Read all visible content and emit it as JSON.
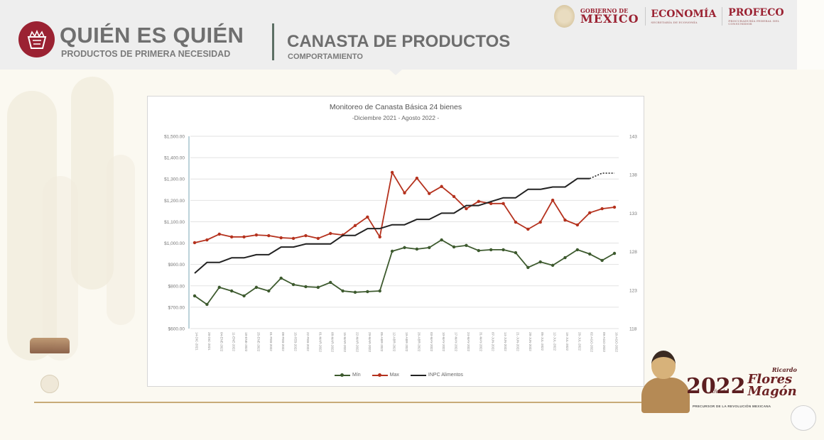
{
  "header": {
    "brand_title": "QUIÉN ES QUIÉN",
    "brand_subtitle": "PRODUCTOS DE PRIMERA NECESIDAD",
    "section_title": "CANASTA DE PRODUCTOS",
    "section_subtitle": "COMPORTAMIENTO",
    "gov_small": "GOBIERNO DE",
    "gov_big": "MÉXICO",
    "org1": "ECONOMÍA",
    "org1_sub": "SECRETARÍA DE ECONOMÍA",
    "org2": "PROFECO",
    "org2_sub": "PROCURADURÍA FEDERAL DEL CONSUMIDOR"
  },
  "footer": {
    "year": "2022",
    "ano_de": "Año de",
    "name_small": "Ricardo",
    "name_line1": "Flores",
    "name_line2": "Magón",
    "tagline": "PRECURSOR DE LA REVOLUCIÓN MEXICANA"
  },
  "colors": {
    "min": "#3d5a2e",
    "max": "#b5321e",
    "inpc": "#222222",
    "brand": "#9b2232"
  },
  "chart_data": {
    "type": "line",
    "title": "Monitoreo de Canasta Básica 24 bienes",
    "subtitle": "-Diciembre 2021 - Agosto 2022 -",
    "xlabel": "",
    "ylabel": "",
    "y_left": {
      "min": 600,
      "max": 1500,
      "step": 100,
      "ticks": [
        "$600.00",
        "$700.00",
        "$800.00",
        "$900.00",
        "$1,000.00",
        "$1,100.00",
        "$1,200.00",
        "$1,300.00",
        "$1,400.00",
        "$1,500.00"
      ]
    },
    "y_right": {
      "min": 118,
      "max": 143,
      "step": 5,
      "ticks": [
        "118",
        "123",
        "128",
        "133",
        "138",
        "143"
      ]
    },
    "grid": true,
    "legend_position": "bottom",
    "categories": [
      "14-DIC-2021",
      "28-DIC-2021",
      "04-ENE-2022",
      "11-ENE-2022",
      "18-ENE-2022",
      "25-ENE-2022",
      "01-FEB-2022",
      "08-FEB-2022",
      "15-FEB-2022",
      "22-FEB-2022",
      "01-MAR-2022",
      "08-MAR-2022",
      "15-MAR-2022",
      "22-MAR-2022",
      "29-MAR-2022",
      "05-ABR-2022",
      "12-ABR-2022",
      "19-ABR-2022",
      "26-ABR-2022",
      "03-MAY-2022",
      "10-MAY-2022",
      "17-MAY-2022",
      "24-MAY-2022",
      "31-MAY-2022",
      "07-JUN-2022",
      "14-JUN-2022",
      "21-JUN-2022",
      "28-JUN-2022",
      "05-JUL-2022",
      "12-JUL-2022",
      "19-JUL-2022",
      "26-JUL-2022",
      "02-AGO-2022",
      "09-AGO-2022",
      "16-AGO-2022"
    ],
    "series": [
      {
        "name": "Mín",
        "axis": "left",
        "color": "#3d5a2e",
        "values": [
          753,
          713,
          793,
          776,
          753,
          793,
          776,
          836,
          806,
          796,
          793,
          816,
          776,
          770,
          773,
          776,
          962,
          979,
          972,
          979,
          1015,
          982,
          989,
          965,
          969,
          969,
          955,
          886,
          912,
          896,
          932,
          969,
          949,
          919,
          952
        ]
      },
      {
        "name": "Max",
        "axis": "left",
        "color": "#b5321e",
        "values": [
          1002,
          1015,
          1042,
          1029,
          1029,
          1038,
          1035,
          1025,
          1022,
          1035,
          1022,
          1045,
          1038,
          1082,
          1122,
          1029,
          1331,
          1235,
          1304,
          1232,
          1265,
          1218,
          1161,
          1195,
          1185,
          1185,
          1098,
          1065,
          1098,
          1201,
          1108,
          1085,
          1142,
          1161,
          1168
        ]
      },
      {
        "name": "INPC Alimentos",
        "axis": "right",
        "color": "#222222",
        "values": [
          125.2,
          126.6,
          126.6,
          127.2,
          127.2,
          127.6,
          127.6,
          128.6,
          128.6,
          129.0,
          129.0,
          129.0,
          130.1,
          130.1,
          131.0,
          131.0,
          131.5,
          131.5,
          132.2,
          132.2,
          133.0,
          133.0,
          134.0,
          134.0,
          134.5,
          135.0,
          135.0,
          136.1,
          136.1,
          136.4,
          136.4,
          137.5,
          137.5,
          null,
          null
        ],
        "projected": [
          null,
          null,
          null,
          null,
          null,
          null,
          null,
          null,
          null,
          null,
          null,
          null,
          null,
          null,
          null,
          null,
          null,
          null,
          null,
          null,
          null,
          null,
          null,
          null,
          null,
          null,
          null,
          null,
          null,
          null,
          null,
          null,
          137.5,
          138.2,
          138.2
        ]
      }
    ]
  }
}
